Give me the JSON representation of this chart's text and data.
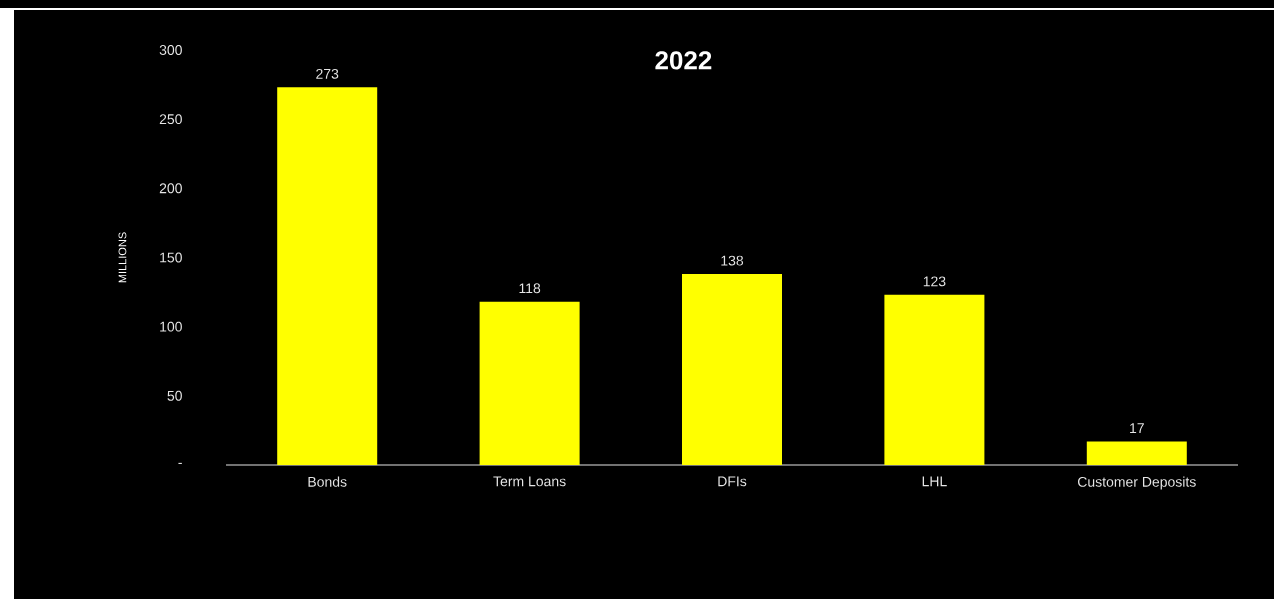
{
  "chart_data": {
    "type": "bar",
    "title": "2022",
    "ylabel": "MILLIONS",
    "categories": [
      "Bonds",
      "Term Loans",
      "DFIs",
      "LHL",
      "Customer Deposits"
    ],
    "values": [
      273,
      118,
      138,
      123,
      17
    ],
    "color": "#ffff00",
    "ylim": [
      0,
      300
    ],
    "yticks": [
      {
        "value": 0,
        "label": "-"
      },
      50,
      100,
      150,
      200,
      250,
      300
    ],
    "data_labels": true
  }
}
